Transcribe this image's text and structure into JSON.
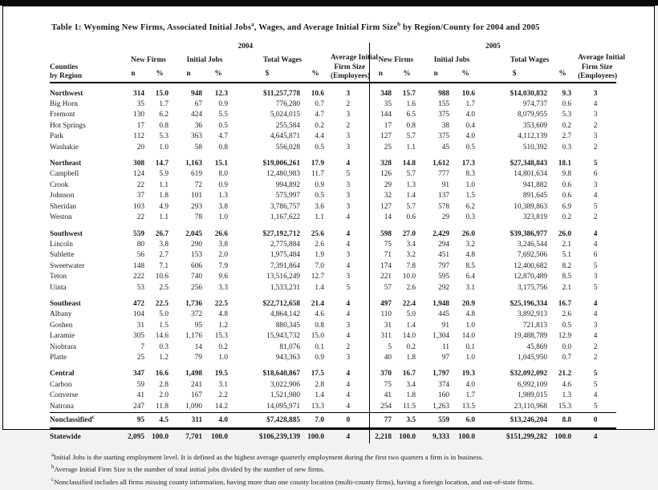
{
  "title": {
    "part1": "Table 1: Wyoming New Firms, Associated Initial Jobs",
    "sup_a": "a",
    "part2": ", Wages, and Average Initial Firm Size",
    "sup_b": "b",
    "part3": " by Region/County for 2004 and 2005"
  },
  "header": {
    "stub_line1": "Counties",
    "stub_line2": "by Region",
    "years": [
      "2004",
      "2005"
    ],
    "groups": {
      "new_firms": "New Firms",
      "initial_jobs": "Initial Jobs",
      "total_wages": "Total Wages",
      "avg_line1": "Average Initial",
      "avg_line2": "Firm Size",
      "avg_line3": "(Employees)"
    },
    "units": {
      "n": "n",
      "pct": "%",
      "dollar": "$"
    }
  },
  "rows": [
    {
      "label": "Northwest",
      "kind": "region",
      "gap": true,
      "c2004": [
        "314",
        "15.0",
        "948",
        "12.3",
        "$11,257,778",
        "10.6",
        "3"
      ],
      "c2005": [
        "348",
        "15.7",
        "988",
        "10.6",
        "$14,030,832",
        "9.3",
        "3"
      ]
    },
    {
      "label": "Big Horn",
      "kind": "county",
      "c2004": [
        "35",
        "1.7",
        "67",
        "0.9",
        "776,280",
        "0.7",
        "2"
      ],
      "c2005": [
        "35",
        "1.6",
        "155",
        "1.7",
        "974,737",
        "0.6",
        "4"
      ]
    },
    {
      "label": "Fremont",
      "kind": "county",
      "c2004": [
        "130",
        "6.2",
        "424",
        "5.5",
        "5,024,015",
        "4.7",
        "3"
      ],
      "c2005": [
        "144",
        "6.5",
        "375",
        "4.0",
        "8,079,955",
        "5.3",
        "3"
      ]
    },
    {
      "label": "Hot Springs",
      "kind": "county",
      "c2004": [
        "17",
        "0.8",
        "36",
        "0.5",
        "255,584",
        "0.2",
        "2"
      ],
      "c2005": [
        "17",
        "0.8",
        "38",
        "0.4",
        "353,609",
        "0.2",
        "2"
      ]
    },
    {
      "label": "Park",
      "kind": "county",
      "c2004": [
        "112",
        "5.3",
        "363",
        "4.7",
        "4,645,871",
        "4.4",
        "3"
      ],
      "c2005": [
        "127",
        "5.7",
        "375",
        "4.0",
        "4,112,139",
        "2.7",
        "3"
      ]
    },
    {
      "label": "Washakie",
      "kind": "county",
      "c2004": [
        "20",
        "1.0",
        "58",
        "0.8",
        "556,028",
        "0.5",
        "3"
      ],
      "c2005": [
        "25",
        "1.1",
        "45",
        "0.5",
        "510,392",
        "0.3",
        "2"
      ]
    },
    {
      "label": "Northeast",
      "kind": "region",
      "gap": true,
      "c2004": [
        "308",
        "14.7",
        "1,163",
        "15.1",
        "$19,006,261",
        "17.9",
        "4"
      ],
      "c2005": [
        "328",
        "14.8",
        "1,612",
        "17.3",
        "$27,348,843",
        "18.1",
        "5"
      ]
    },
    {
      "label": "Campbell",
      "kind": "county",
      "c2004": [
        "124",
        "5.9",
        "619",
        "8.0",
        "12,480,983",
        "11.7",
        "5"
      ],
      "c2005": [
        "126",
        "5.7",
        "777",
        "8.3",
        "14,801,634",
        "9.8",
        "6"
      ]
    },
    {
      "label": "Crook",
      "kind": "county",
      "c2004": [
        "22",
        "1.1",
        "72",
        "0.9",
        "994,892",
        "0.9",
        "3"
      ],
      "c2005": [
        "29",
        "1.3",
        "91",
        "1.0",
        "941,882",
        "0.6",
        "3"
      ]
    },
    {
      "label": "Johnson",
      "kind": "county",
      "c2004": [
        "37",
        "1.8",
        "101",
        "1.3",
        "575,997",
        "0.5",
        "3"
      ],
      "c2005": [
        "32",
        "1.4",
        "137",
        "1.5",
        "891,645",
        "0.6",
        "4"
      ]
    },
    {
      "label": "Sheridan",
      "kind": "county",
      "c2004": [
        "103",
        "4.9",
        "293",
        "3.8",
        "3,786,757",
        "3.6",
        "3"
      ],
      "c2005": [
        "127",
        "5.7",
        "578",
        "6.2",
        "10,389,863",
        "6.9",
        "5"
      ]
    },
    {
      "label": "Weston",
      "kind": "county",
      "c2004": [
        "22",
        "1.1",
        "78",
        "1.0",
        "1,167,622",
        "1.1",
        "4"
      ],
      "c2005": [
        "14",
        "0.6",
        "29",
        "0.3",
        "323,819",
        "0.2",
        "2"
      ]
    },
    {
      "label": "Southwest",
      "kind": "region",
      "gap": true,
      "c2004": [
        "559",
        "26.7",
        "2,045",
        "26.6",
        "$27,192,712",
        "25.6",
        "4"
      ],
      "c2005": [
        "598",
        "27.0",
        "2,429",
        "26.0",
        "$39,386,977",
        "26.0",
        "4"
      ]
    },
    {
      "label": "Lincoln",
      "kind": "county",
      "c2004": [
        "80",
        "3.8",
        "290",
        "3.8",
        "2,775,884",
        "2.6",
        "4"
      ],
      "c2005": [
        "75",
        "3.4",
        "294",
        "3.2",
        "3,246,544",
        "2.1",
        "4"
      ]
    },
    {
      "label": "Sublette",
      "kind": "county",
      "c2004": [
        "56",
        "2.7",
        "153",
        "2.0",
        "1,975,484",
        "1.9",
        "3"
      ],
      "c2005": [
        "71",
        "3.2",
        "451",
        "4.8",
        "7,692,506",
        "5.1",
        "6"
      ]
    },
    {
      "label": "Sweetwater",
      "kind": "county",
      "c2004": [
        "148",
        "7.1",
        "606",
        "7.9",
        "7,391,864",
        "7.0",
        "4"
      ],
      "c2005": [
        "174",
        "7.8",
        "797",
        "8.5",
        "12,400,682",
        "8.2",
        "5"
      ]
    },
    {
      "label": "Teton",
      "kind": "county",
      "c2004": [
        "222",
        "10.6",
        "740",
        "9.6",
        "13,516,249",
        "12.7",
        "3"
      ],
      "c2005": [
        "221",
        "10.0",
        "595",
        "6.4",
        "12,870,489",
        "8.5",
        "3"
      ]
    },
    {
      "label": "Uinta",
      "kind": "county",
      "c2004": [
        "53",
        "2.5",
        "256",
        "3.3",
        "1,533,231",
        "1.4",
        "5"
      ],
      "c2005": [
        "57",
        "2.6",
        "292",
        "3.1",
        "3,175,756",
        "2.1",
        "5"
      ]
    },
    {
      "label": "Southeast",
      "kind": "region",
      "gap": true,
      "c2004": [
        "472",
        "22.5",
        "1,736",
        "22.5",
        "$22,712,658",
        "21.4",
        "4"
      ],
      "c2005": [
        "497",
        "22.4",
        "1,948",
        "20.9",
        "$25,196,334",
        "16.7",
        "4"
      ]
    },
    {
      "label": "Albany",
      "kind": "county",
      "c2004": [
        "104",
        "5.0",
        "372",
        "4.8",
        "4,864,142",
        "4.6",
        "4"
      ],
      "c2005": [
        "110",
        "5.0",
        "445",
        "4.8",
        "3,892,913",
        "2.6",
        "4"
      ]
    },
    {
      "label": "Goshen",
      "kind": "county",
      "c2004": [
        "31",
        "1.5",
        "95",
        "1.2",
        "880,345",
        "0.8",
        "3"
      ],
      "c2005": [
        "31",
        "1.4",
        "91",
        "1.0",
        "721,813",
        "0.5",
        "3"
      ]
    },
    {
      "label": "Laramie",
      "kind": "county",
      "c2004": [
        "305",
        "14.6",
        "1,176",
        "15.3",
        "15,943,732",
        "15.0",
        "4"
      ],
      "c2005": [
        "311",
        "14.0",
        "1,304",
        "14.0",
        "19,488,789",
        "12.9",
        "4"
      ]
    },
    {
      "label": "Niobrara",
      "kind": "county",
      "c2004": [
        "7",
        "0.3",
        "14",
        "0.2",
        "81,076",
        "0.1",
        "2"
      ],
      "c2005": [
        "5",
        "0.2",
        "11",
        "0.1",
        "45,869",
        "0.0",
        "2"
      ]
    },
    {
      "label": "Platte",
      "kind": "county",
      "c2004": [
        "25",
        "1.2",
        "79",
        "1.0",
        "943,363",
        "0.9",
        "3"
      ],
      "c2005": [
        "40",
        "1.8",
        "97",
        "1.0",
        "1,045,950",
        "0.7",
        "2"
      ]
    },
    {
      "label": "Central",
      "kind": "region",
      "gap": true,
      "c2004": [
        "347",
        "16.6",
        "1,498",
        "19.5",
        "$18,640,867",
        "17.5",
        "4"
      ],
      "c2005": [
        "370",
        "16.7",
        "1,797",
        "19.3",
        "$32,092,092",
        "21.2",
        "5"
      ]
    },
    {
      "label": "Carbon",
      "kind": "county",
      "c2004": [
        "59",
        "2.8",
        "241",
        "3.1",
        "3,022,906",
        "2.8",
        "4"
      ],
      "c2005": [
        "75",
        "3.4",
        "374",
        "4.0",
        "6,992,109",
        "4.6",
        "5"
      ]
    },
    {
      "label": "Converse",
      "kind": "county",
      "c2004": [
        "41",
        "2.0",
        "167",
        "2.2",
        "1,521,980",
        "1.4",
        "4"
      ],
      "c2005": [
        "41",
        "1.8",
        "160",
        "1.7",
        "1,989,015",
        "1.3",
        "4"
      ]
    },
    {
      "label": "Natrona",
      "kind": "county",
      "c2004": [
        "247",
        "11.8",
        "1,090",
        "14.2",
        "14,095,971",
        "13.3",
        "4"
      ],
      "c2005": [
        "254",
        "11.5",
        "1,263",
        "13.5",
        "23,110,968",
        "15.3",
        "5"
      ]
    },
    {
      "label": "Nonclassified",
      "label_sup": "c",
      "kind": "nonclassified",
      "c2004": [
        "95",
        "4.5",
        "311",
        "4.0",
        "$7,428,885",
        "7.0",
        "0"
      ],
      "c2005": [
        "77",
        "3.5",
        "559",
        "6.0",
        "$13,246,204",
        "8.8",
        "0"
      ]
    },
    {
      "label": "Statewide",
      "kind": "statewide",
      "c2004": [
        "2,095",
        "100.0",
        "7,701",
        "100.0",
        "$106,239,139",
        "100.0",
        "4"
      ],
      "c2005": [
        "2,218",
        "100.0",
        "9,333",
        "100.0",
        "$151,299,282",
        "100.0",
        "4"
      ]
    }
  ],
  "footnotes": [
    {
      "sup": "a",
      "text": "Initial Jobs is the starting employment level. It is defined as the highest average quarterly employment during the first two quarters a firm is in business."
    },
    {
      "sup": "b",
      "text": "Average Initial Firm Size is the number of total initial jobs divided by the number of new firms."
    },
    {
      "sup": "c",
      "text": "Nonclassified includes all firms missing county information, having more than one county location (multi-county firms), having a foreign location, and out-of-state firms."
    }
  ]
}
